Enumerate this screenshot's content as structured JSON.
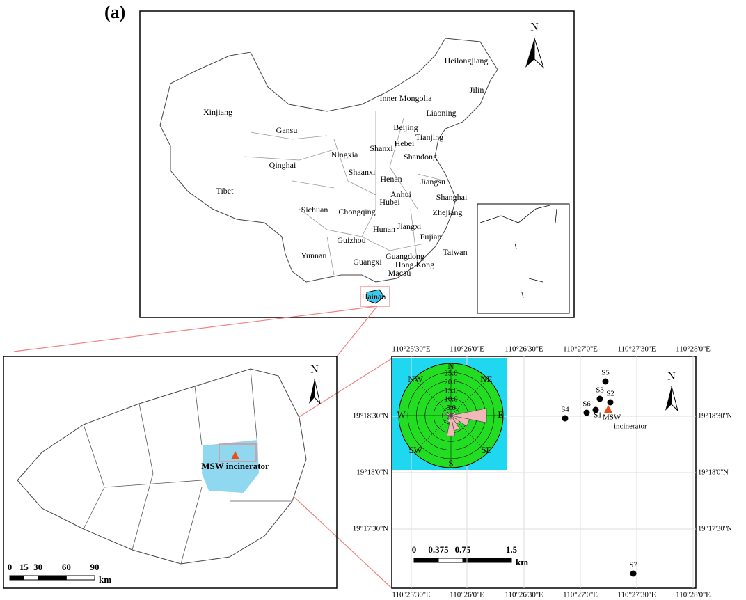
{
  "panel_label": "(a)",
  "china_map": {
    "north": "N",
    "provinces": [
      "Heilongjiang",
      "Jilin",
      "Inner Mongolia",
      "Liaoning",
      "Xinjiang",
      "Gansu",
      "Beijing",
      "Tianjing",
      "Hebei",
      "Ningxia",
      "Shanxi",
      "Shandong",
      "Qinghai",
      "Shaanxi",
      "Henan",
      "Jiangsu",
      "Tibet",
      "Anhui",
      "Shanghai",
      "Hubei",
      "Sichuan",
      "Chongqing",
      "Zhejiang",
      "Hunan",
      "Jiangxi",
      "Guizhou",
      "Fujian",
      "Taiwan",
      "Yunnan",
      "Guangxi",
      "Guangdong",
      "Hong Kong",
      "Macau",
      "Hainan"
    ]
  },
  "hainan_map": {
    "north": "N",
    "site_label": "MSW incinerator",
    "scale_bar": {
      "ticks": [
        0,
        15,
        30,
        60,
        90
      ],
      "unit": "km"
    }
  },
  "site_map": {
    "north": "N",
    "x_labels": [
      "110°25'30''E",
      "110°26'0''E",
      "110°26'30''E",
      "110°27'0''E",
      "110°27'30''E",
      "110°28'0''E"
    ],
    "y_labels": [
      "19°18'30''N",
      "19°18'0''N",
      "19°17'30''N"
    ],
    "sites": [
      "S1",
      "S2",
      "S3",
      "S4",
      "S5",
      "S6",
      "S7"
    ],
    "incinerator_lines": [
      "MSW",
      "incinerator"
    ],
    "scale_bar": {
      "ticks": [
        0,
        0.375,
        0.75,
        1.5
      ],
      "unit": "km"
    },
    "wind_rose": {
      "directions": [
        "N",
        "NE",
        "E",
        "SE",
        "S",
        "SW",
        "W",
        "NW"
      ],
      "rings": [
        {
          "value": 5,
          "label": "5.0"
        },
        {
          "value": 10,
          "label": "10.0"
        },
        {
          "value": 15,
          "label": "15.0"
        },
        {
          "value": 20,
          "label": "20.0"
        },
        {
          "value": 25,
          "label": "25.0"
        }
      ],
      "petals": [
        1,
        1,
        1.5,
        3,
        21,
        11,
        6,
        9,
        12,
        4,
        2,
        1.5,
        1.5,
        3,
        2,
        1
      ]
    }
  }
}
